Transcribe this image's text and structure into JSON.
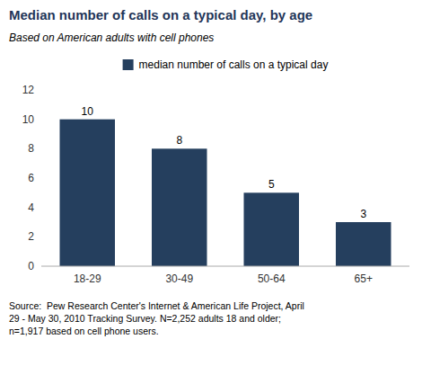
{
  "chart_data": {
    "type": "bar",
    "title": "Median number of calls on a typical day, by age",
    "subtitle": "Based on American adults with cell phones",
    "categories": [
      "18-29",
      "30-49",
      "50-64",
      "65+"
    ],
    "series": [
      {
        "name": "median number of calls on a typical day",
        "color": "#253f5e",
        "values": [
          10,
          8,
          5,
          3
        ]
      }
    ],
    "ylim": [
      0,
      12
    ],
    "yticks": [
      0,
      2,
      4,
      6,
      8,
      10,
      12
    ],
    "grid": false,
    "legend": "top",
    "data_labels": true,
    "annotations": [
      "Source:  Pew Research Center's Internet & American Life Project, April\n29 - May 30, 2010 Tracking Survey. N=2,252 adults 18 and older;\nn=1,917 based on cell phone users."
    ]
  }
}
